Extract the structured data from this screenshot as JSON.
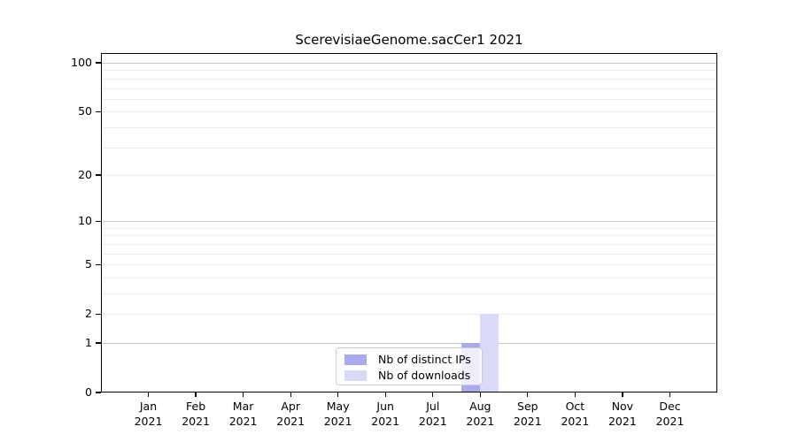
{
  "chart_data": {
    "type": "bar",
    "title": "ScerevisiaeGenome.sacCer1 2021",
    "x_categories": [
      "Jan 2021",
      "Feb 2021",
      "Mar 2021",
      "Apr 2021",
      "May 2021",
      "Jun 2021",
      "Jul 2021",
      "Aug 2021",
      "Sep 2021",
      "Oct 2021",
      "Nov 2021",
      "Dec 2021"
    ],
    "series": [
      {
        "name": "Nb of distinct IPs",
        "color": "#aaaaee",
        "values": [
          0,
          0,
          0,
          0,
          0,
          0,
          0,
          1,
          0,
          0,
          0,
          0
        ]
      },
      {
        "name": "Nb of downloads",
        "color": "#d9d9f8",
        "values": [
          0,
          0,
          0,
          0,
          0,
          0,
          0,
          2,
          0,
          0,
          0,
          0
        ]
      }
    ],
    "yscale": "log1p",
    "ylim": [
      0,
      100
    ],
    "ytick_labels": [
      0,
      1,
      2,
      5,
      10,
      20,
      50,
      100
    ],
    "y_major_gridlines": [
      1,
      10,
      100
    ],
    "y_minor_gridlines": [
      2,
      3,
      4,
      5,
      6,
      7,
      8,
      9,
      20,
      30,
      40,
      50,
      60,
      70,
      80,
      90
    ],
    "grid": true,
    "legend_position": "lower-center-inside"
  },
  "colors": {
    "major_grid": "#c9c9c9",
    "minor_grid": "#ededed",
    "spine": "#000000",
    "legend_border": "#cccccc"
  }
}
